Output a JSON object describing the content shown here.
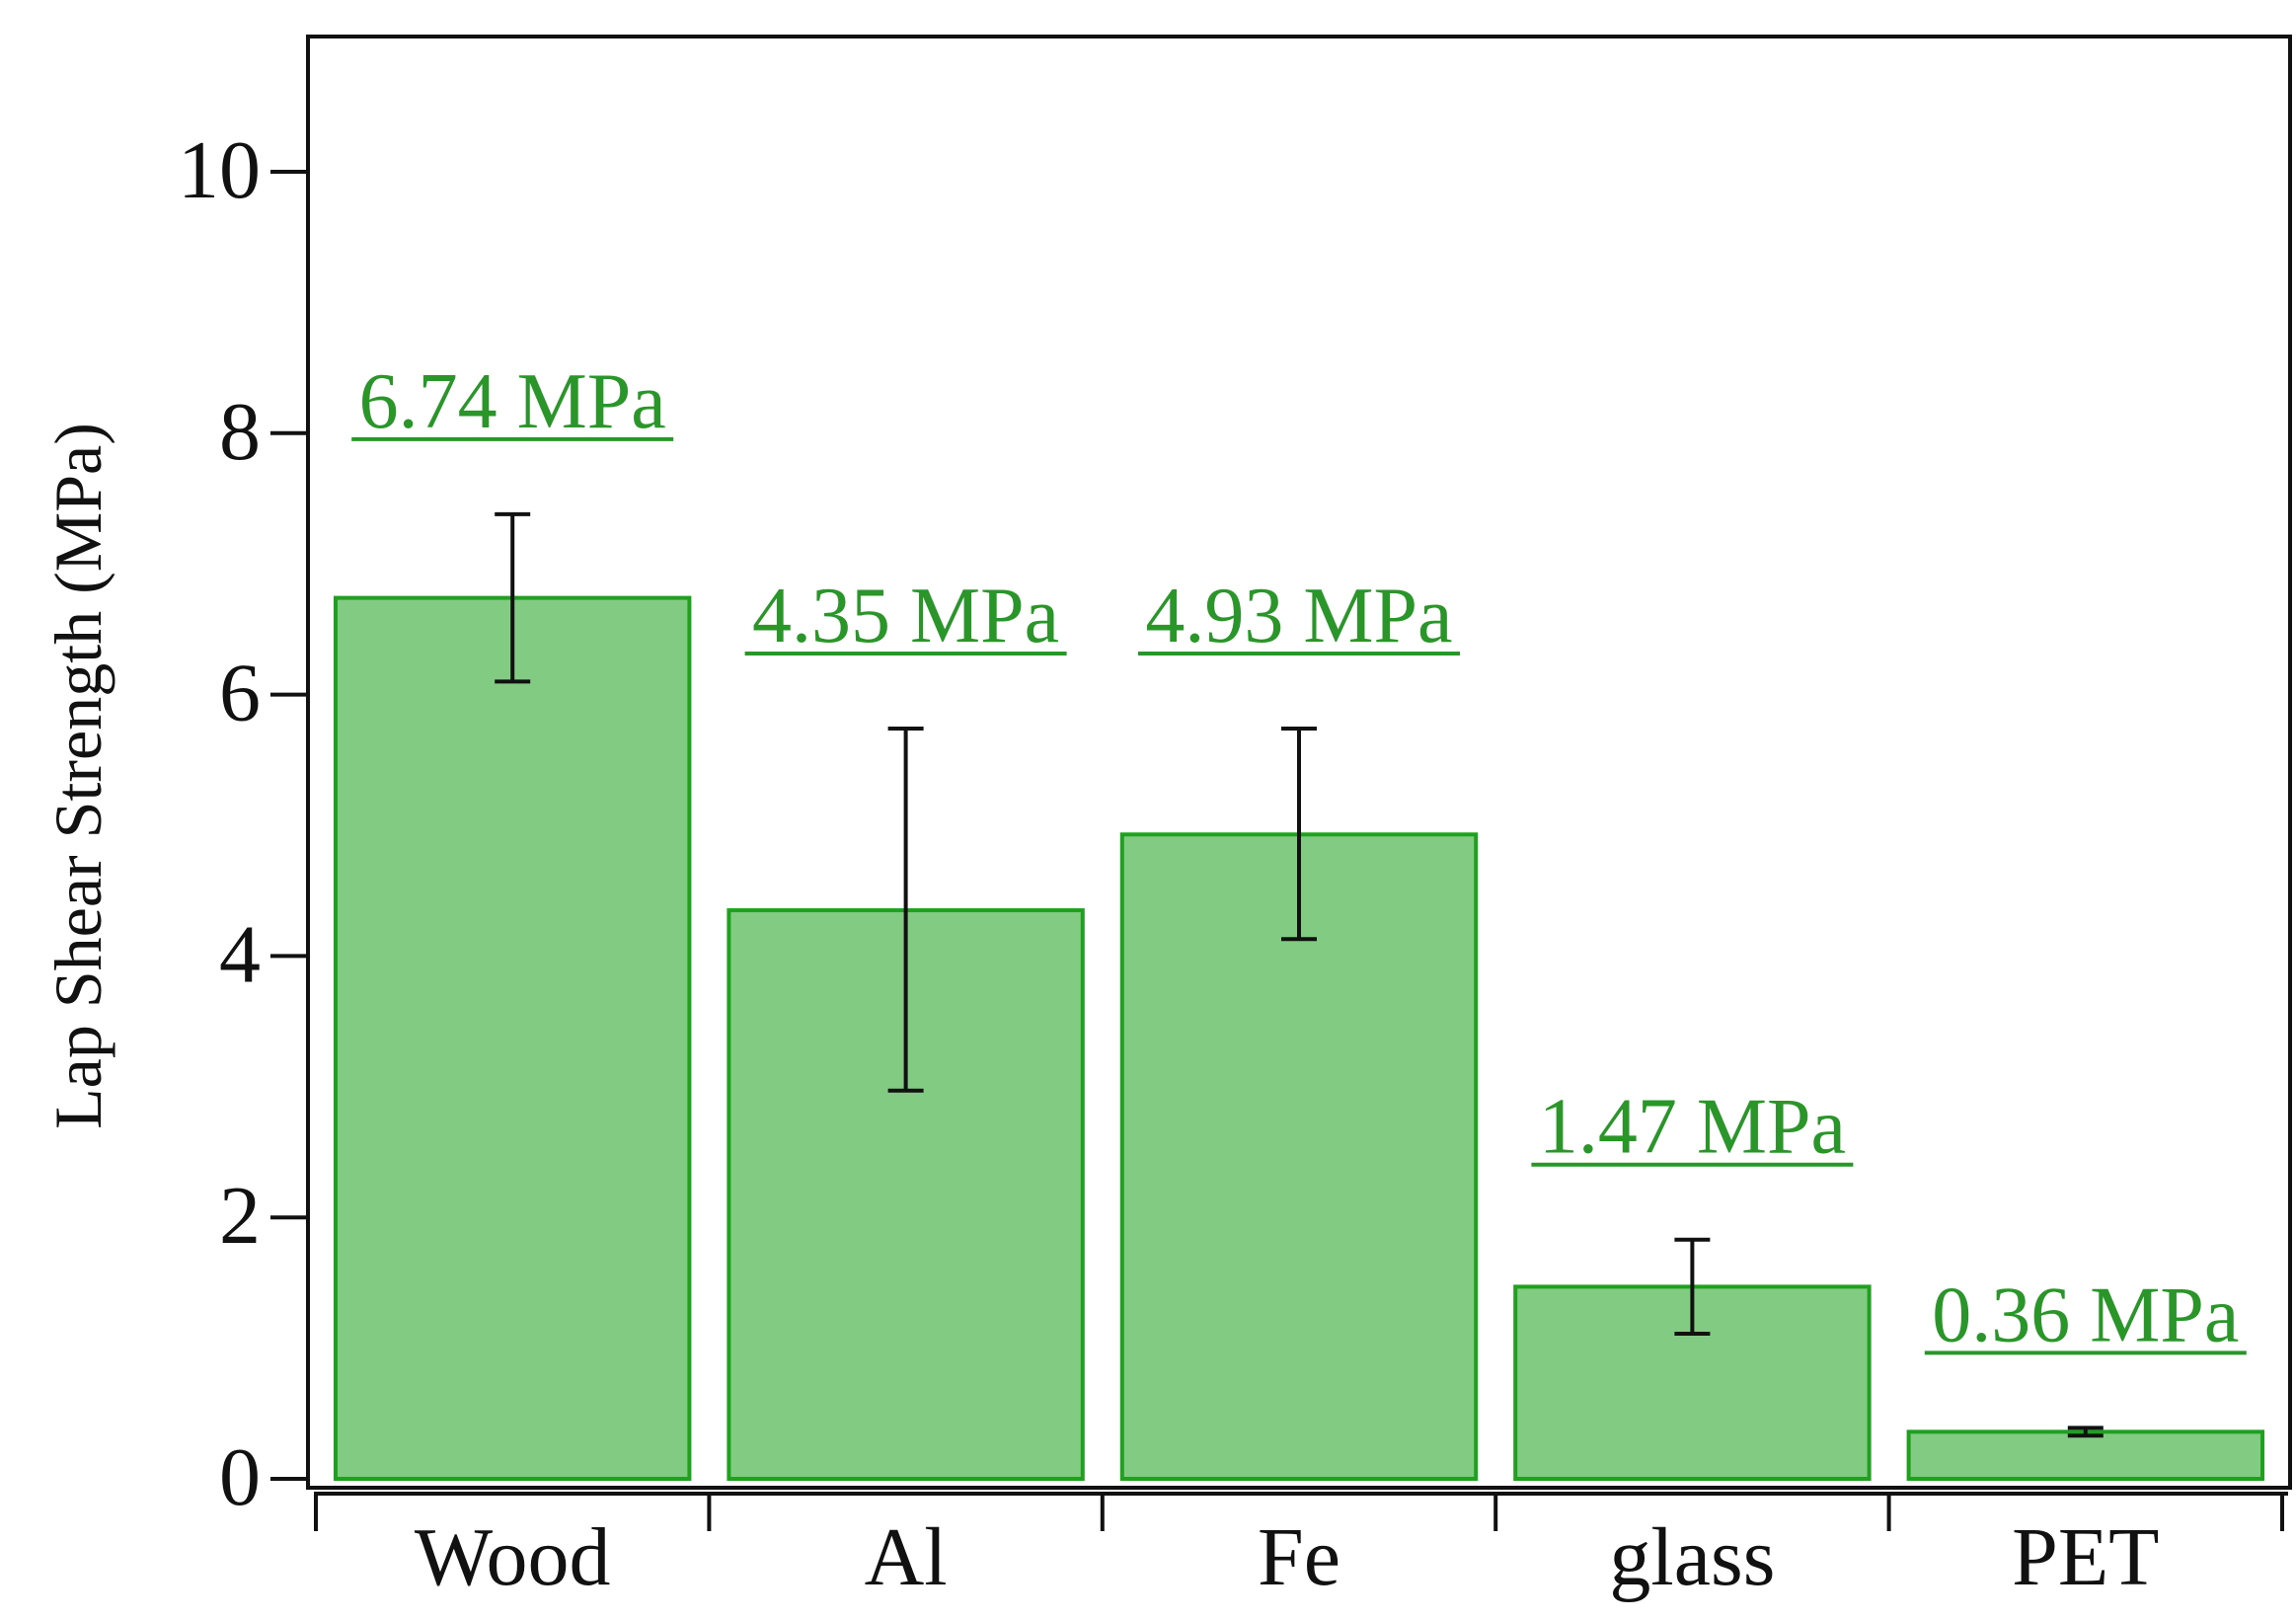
{
  "chart_data": {
    "type": "bar",
    "categories": [
      "Wood",
      "Al",
      "Fe",
      "glass",
      "PET"
    ],
    "values": [
      6.74,
      4.35,
      4.93,
      1.47,
      0.36
    ],
    "error_low": [
      6.1,
      2.97,
      4.13,
      1.11,
      0.33
    ],
    "error_high": [
      7.38,
      5.74,
      5.74,
      1.83,
      0.39
    ],
    "data_labels": [
      "6.74 MPa",
      "4.35 MPa",
      "4.93 MPa",
      "1.47 MPa",
      "0.36 MPa"
    ],
    "title": "",
    "xlabel": "",
    "ylabel": "Lap Shear Strength (MPa)",
    "ylim": [
      0,
      11
    ],
    "yticks": [
      0,
      2,
      4,
      6,
      8,
      10
    ],
    "grid": false,
    "colors": {
      "bar_fill": "#82cb82",
      "bar_stroke": "#1fa11f",
      "label_text": "#2a962a",
      "error_bar": "#111111",
      "axis": "#111111"
    }
  }
}
